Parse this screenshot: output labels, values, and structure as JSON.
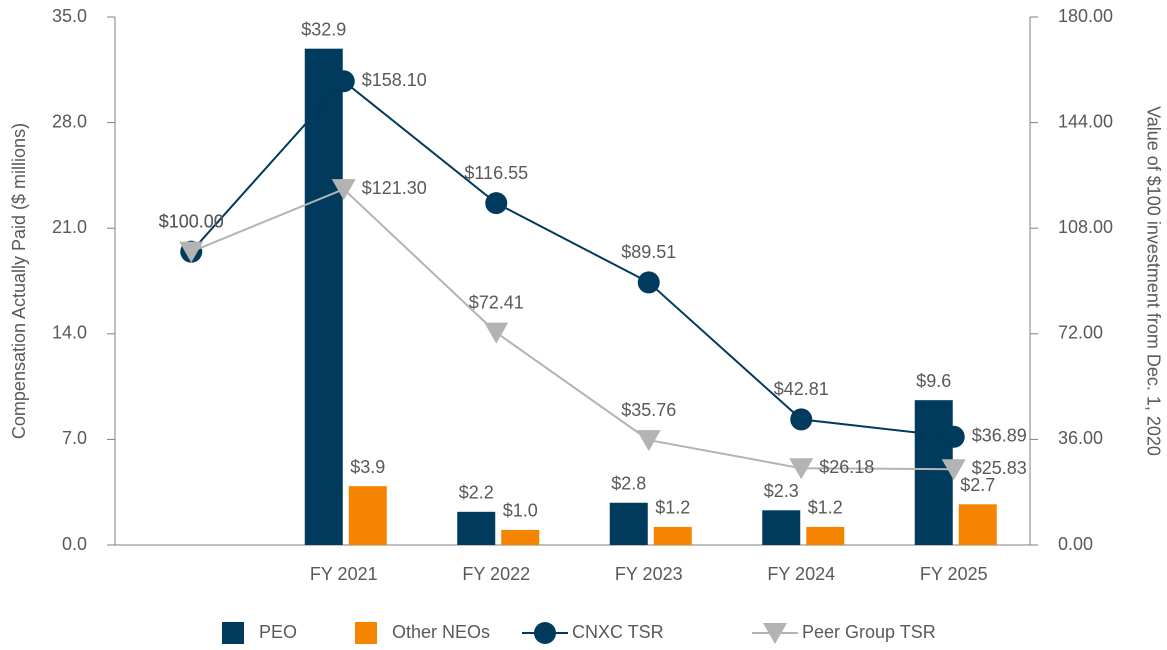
{
  "chart_data": {
    "type": "bar-line",
    "categories": [
      null,
      "FY 2021",
      "FY 2022",
      "FY 2023",
      "FY 2024",
      "FY 2025"
    ],
    "ylabel": "Compensation Actually Paid ($ millions)",
    "y2label": "Value of $100 investment from Dec. 1, 2020",
    "ylim": [
      0,
      35
    ],
    "yticks": [
      {
        "value": 0,
        "label": "0.0"
      },
      {
        "value": 7,
        "label": "7.0"
      },
      {
        "value": 14,
        "label": "14.0"
      },
      {
        "value": 21,
        "label": "21.0"
      },
      {
        "value": 28,
        "label": "28.0"
      },
      {
        "value": 35,
        "label": "35.0"
      }
    ],
    "y2lim": [
      0,
      180
    ],
    "y2ticks": [
      {
        "value": 0,
        "label": "0.00"
      },
      {
        "value": 36,
        "label": "36.00"
      },
      {
        "value": 72,
        "label": "72.00"
      },
      {
        "value": 108,
        "label": "108.00"
      },
      {
        "value": 144,
        "label": "144.00"
      },
      {
        "value": 180,
        "label": "180.00"
      }
    ],
    "series": [
      {
        "name": "PEO",
        "kind": "bar",
        "color": "#003a5d",
        "values": [
          null,
          32.9,
          2.2,
          2.8,
          2.3,
          9.6
        ],
        "value_labels": [
          null,
          "$32.9",
          "$2.2",
          "$2.8",
          "$2.3",
          "$9.6"
        ]
      },
      {
        "name": "Other NEOs",
        "kind": "bar",
        "color": "#f58400",
        "values": [
          null,
          3.9,
          1.0,
          1.2,
          1.2,
          2.7
        ],
        "value_labels": [
          null,
          "$3.9",
          "$1.0",
          "$1.2",
          "$1.2",
          "$2.7"
        ]
      },
      {
        "name": "CNXC TSR",
        "kind": "line",
        "marker": "circle",
        "axis": "y2",
        "color": "#003a5d",
        "values": [
          100,
          158.1,
          116.55,
          89.51,
          42.81,
          36.89
        ],
        "value_labels": [
          "$100.00",
          "$158.10",
          "$116.55",
          "$89.51",
          "$42.81",
          "$36.89"
        ]
      },
      {
        "name": "Peer Group TSR",
        "kind": "line",
        "marker": "triangle",
        "axis": "y2",
        "color": "#b3b3b3",
        "values": [
          100,
          121.3,
          72.41,
          35.76,
          26.18,
          25.83
        ],
        "value_labels": [
          "$100.00",
          "$121.30",
          "$72.41",
          "$35.76",
          "$26.18",
          "$25.83"
        ]
      }
    ]
  }
}
